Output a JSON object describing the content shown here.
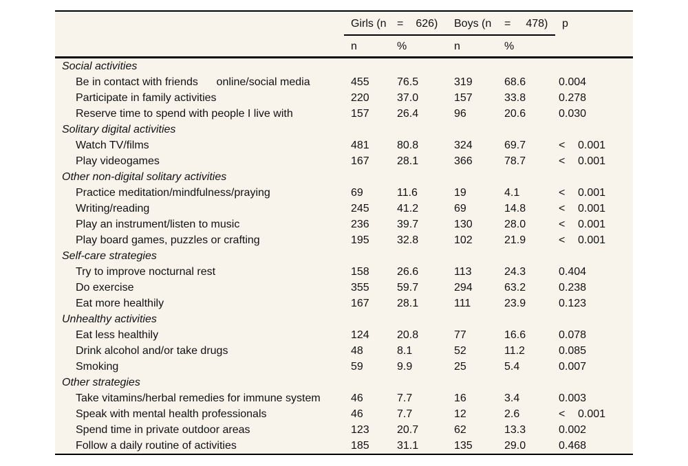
{
  "table": {
    "colors": {
      "panel_background": "#f8f4ec",
      "text": "#111111",
      "rule": "#000000"
    },
    "header": {
      "girls_group": "Girls (n",
      "girls_eq": "=",
      "girls_count": "626)",
      "boys_group": "Boys (n",
      "boys_eq": "=",
      "boys_count": "478)",
      "p_label": "p",
      "sub_n_girls": "n",
      "sub_pct_girls": "%",
      "sub_n_boys": "n",
      "sub_pct_boys": "%"
    },
    "rows": [
      {
        "type": "section",
        "label": "Social activities"
      },
      {
        "type": "item",
        "label": "Be in contact with friends      online/social media",
        "n1": "455",
        "pct1": "76.5",
        "n2": "319",
        "pct2": "68.6",
        "p_lt": "",
        "p": "0.004"
      },
      {
        "type": "item",
        "label": "Participate in family activities",
        "n1": "220",
        "pct1": "37.0",
        "n2": "157",
        "pct2": "33.8",
        "p_lt": "",
        "p": "0.278"
      },
      {
        "type": "item",
        "label": "Reserve time to spend with people I live with",
        "n1": "157",
        "pct1": "26.4",
        "n2": "96",
        "pct2": "20.6",
        "p_lt": "",
        "p": "0.030"
      },
      {
        "type": "section",
        "label": "Solitary digital activities"
      },
      {
        "type": "item",
        "label": "Watch TV/films",
        "n1": "481",
        "pct1": "80.8",
        "n2": "324",
        "pct2": "69.7",
        "p_lt": "<",
        "p": "0.001"
      },
      {
        "type": "item",
        "label": "Play videogames",
        "n1": "167",
        "pct1": "28.1",
        "n2": "366",
        "pct2": "78.7",
        "p_lt": "<",
        "p": "0.001"
      },
      {
        "type": "section",
        "label": "Other non-digital solitary activities"
      },
      {
        "type": "item",
        "label": "Practice meditation/mindfulness/praying",
        "n1": "69",
        "pct1": "11.6",
        "n2": "19",
        "pct2": "4.1",
        "p_lt": "<",
        "p": "0.001"
      },
      {
        "type": "item",
        "label": "Writing/reading",
        "n1": "245",
        "pct1": "41.2",
        "n2": "69",
        "pct2": "14.8",
        "p_lt": "<",
        "p": "0.001"
      },
      {
        "type": "item",
        "label": "Play an instrument/listen to music",
        "n1": "236",
        "pct1": "39.7",
        "n2": "130",
        "pct2": "28.0",
        "p_lt": "<",
        "p": "0.001"
      },
      {
        "type": "item",
        "label": "Play board games, puzzles or crafting",
        "n1": "195",
        "pct1": "32.8",
        "n2": "102",
        "pct2": "21.9",
        "p_lt": "<",
        "p": "0.001"
      },
      {
        "type": "section",
        "label": "Self-care strategies"
      },
      {
        "type": "item",
        "label": "Try to improve nocturnal rest",
        "n1": "158",
        "pct1": "26.6",
        "n2": "113",
        "pct2": "24.3",
        "p_lt": "",
        "p": "0.404"
      },
      {
        "type": "item",
        "label": "Do exercise",
        "n1": "355",
        "pct1": "59.7",
        "n2": "294",
        "pct2": "63.2",
        "p_lt": "",
        "p": "0.238"
      },
      {
        "type": "item",
        "label": "Eat more healthily",
        "n1": "167",
        "pct1": "28.1",
        "n2": "111",
        "pct2": "23.9",
        "p_lt": "",
        "p": "0.123"
      },
      {
        "type": "section",
        "label": "Unhealthy activities"
      },
      {
        "type": "item",
        "label": "Eat less healthily",
        "n1": "124",
        "pct1": "20.8",
        "n2": "77",
        "pct2": "16.6",
        "p_lt": "",
        "p": "0.078"
      },
      {
        "type": "item",
        "label": "Drink alcohol and/or take drugs",
        "n1": "48",
        "pct1": "8.1",
        "n2": "52",
        "pct2": "11.2",
        "p_lt": "",
        "p": "0.085"
      },
      {
        "type": "item",
        "label": "Smoking",
        "n1": "59",
        "pct1": "9.9",
        "n2": "25",
        "pct2": "5.4",
        "p_lt": "",
        "p": "0.007"
      },
      {
        "type": "section",
        "label": "Other strategies"
      },
      {
        "type": "item",
        "label": "Take vitamins/herbal remedies for immune system",
        "n1": "46",
        "pct1": "7.7",
        "n2": "16",
        "pct2": "3.4",
        "p_lt": "",
        "p": "0.003"
      },
      {
        "type": "item",
        "label": "Speak with mental health professionals",
        "n1": "46",
        "pct1": "7.7",
        "n2": "12",
        "pct2": "2.6",
        "p_lt": "<",
        "p": "0.001"
      },
      {
        "type": "item",
        "label": "Spend time in private outdoor areas",
        "n1": "123",
        "pct1": "20.7",
        "n2": "62",
        "pct2": "13.3",
        "p_lt": "",
        "p": "0.002"
      },
      {
        "type": "item",
        "label": "Follow a daily routine of activities",
        "n1": "185",
        "pct1": "31.1",
        "n2": "135",
        "pct2": "29.0",
        "p_lt": "",
        "p": "0.468"
      }
    ]
  }
}
